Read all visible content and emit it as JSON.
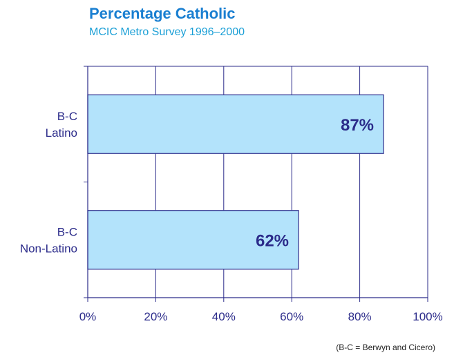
{
  "colors": {
    "title": "#1a7fd1",
    "subtitle": "#1a9fd6",
    "axis": "#2b2b8a",
    "bar_fill": "#b3e3fb",
    "bar_stroke": "#2b2b8a",
    "value_label": "#2b2b8a",
    "tick_label": "#2b2b8a",
    "category_label": "#2b2b8a"
  },
  "chart_data": {
    "type": "bar",
    "orientation": "horizontal",
    "title": "Percentage Catholic",
    "subtitle": "MCIC Metro Survey 1996–2000",
    "categories": [
      [
        "B-C",
        "Latino"
      ],
      [
        "B-C",
        "Non-Latino"
      ]
    ],
    "values": [
      87,
      62
    ],
    "value_labels": [
      "87%",
      "62%"
    ],
    "xlim": [
      0,
      100
    ],
    "xticks": [
      0,
      20,
      40,
      60,
      80,
      100
    ],
    "xtick_labels": [
      "0%",
      "20%",
      "40%",
      "60%",
      "80%",
      "100%"
    ],
    "grid": "vertical",
    "legend": "none",
    "footnote": "(B-C = Berwyn and Cicero)"
  }
}
